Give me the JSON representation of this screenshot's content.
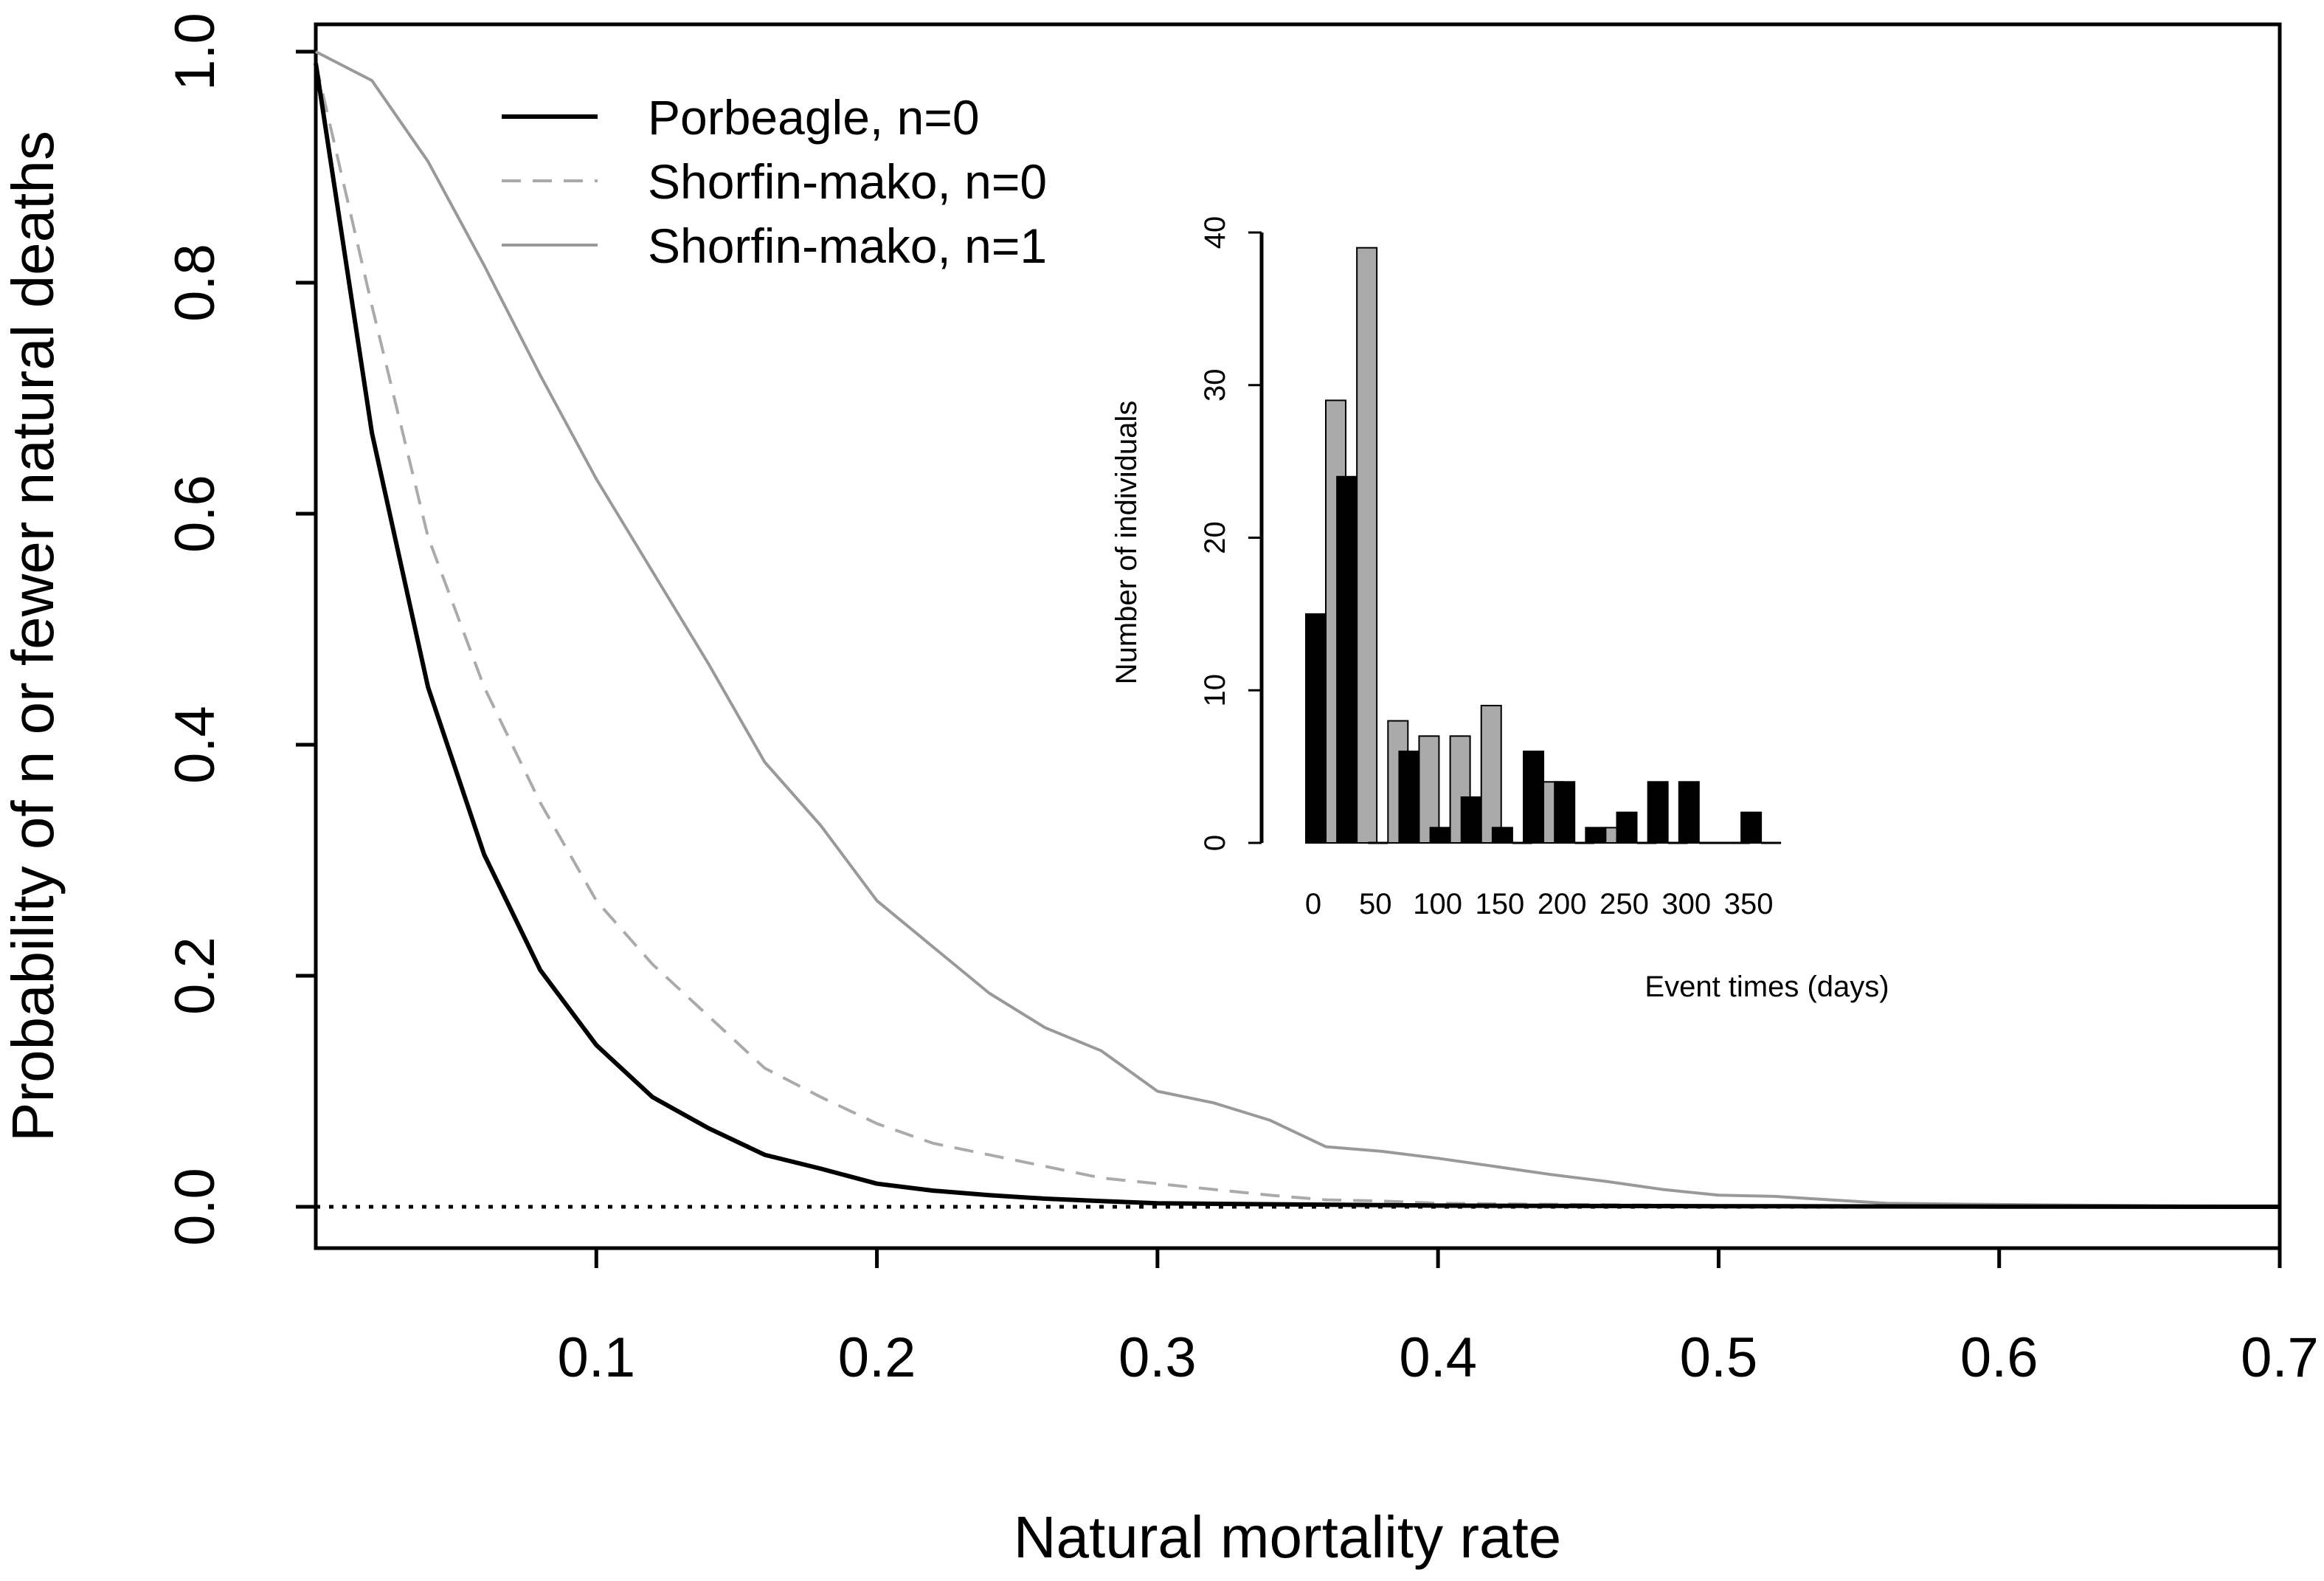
{
  "chart_data": [
    {
      "type": "line",
      "xlabel": "Natural mortality rate",
      "ylabel": "Probability of n or fewer natural deaths",
      "xlim": [
        0,
        0.7
      ],
      "ylim": [
        0,
        1.0
      ],
      "x_ticks": [
        0.1,
        0.2,
        0.3,
        0.4,
        0.5,
        0.6,
        0.7
      ],
      "x_tick_labels": [
        "0.1",
        "0.2",
        "0.3",
        "0.4",
        "0.5",
        "0.6",
        "0.7"
      ],
      "y_ticks": [
        0.0,
        0.2,
        0.4,
        0.6,
        0.8,
        1.0
      ],
      "y_tick_labels": [
        "0.0",
        "0.2",
        "0.4",
        "0.6",
        "0.8",
        "1.0"
      ],
      "reference_line": {
        "y": 0.0,
        "style": "dotted"
      },
      "legend_position": "top-left",
      "series": [
        {
          "name": "Porbeagle, n=0",
          "color": "#000000",
          "style": "solid",
          "x": [
            0,
            0.02,
            0.04,
            0.06,
            0.08,
            0.1,
            0.12,
            0.14,
            0.16,
            0.18,
            0.2,
            0.22,
            0.24,
            0.26,
            0.28,
            0.3,
            0.35,
            0.4,
            0.5,
            0.6,
            0.7
          ],
          "y": [
            0.99,
            0.67,
            0.45,
            0.305,
            0.205,
            0.14,
            0.095,
            0.068,
            0.045,
            0.033,
            0.02,
            0.014,
            0.01,
            0.007,
            0.005,
            0.003,
            0.002,
            0.001,
            0.0005,
            0.0002,
            0.0
          ]
        },
        {
          "name": "Shorfin-mako, n=0",
          "color": "#aaaaaa",
          "style": "dashed",
          "x": [
            0,
            0.02,
            0.04,
            0.06,
            0.08,
            0.1,
            0.12,
            0.14,
            0.16,
            0.18,
            0.2,
            0.22,
            0.24,
            0.26,
            0.28,
            0.3,
            0.32,
            0.34,
            0.36,
            0.38,
            0.4,
            0.45,
            0.5,
            0.6,
            0.7
          ],
          "y": [
            0.99,
            0.78,
            0.58,
            0.45,
            0.35,
            0.265,
            0.21,
            0.165,
            0.12,
            0.095,
            0.072,
            0.055,
            0.045,
            0.035,
            0.025,
            0.02,
            0.015,
            0.01,
            0.006,
            0.005,
            0.003,
            0.002,
            0.001,
            0.0005,
            0.0
          ]
        },
        {
          "name": "Shorfin-mako, n=1",
          "color": "#999999",
          "style": "solid",
          "x": [
            0,
            0.02,
            0.04,
            0.06,
            0.08,
            0.1,
            0.12,
            0.14,
            0.16,
            0.18,
            0.2,
            0.22,
            0.24,
            0.26,
            0.28,
            0.3,
            0.32,
            0.34,
            0.36,
            0.38,
            0.4,
            0.42,
            0.44,
            0.46,
            0.48,
            0.5,
            0.52,
            0.54,
            0.56,
            0.6,
            0.65,
            0.7
          ],
          "y": [
            1.0,
            0.975,
            0.905,
            0.815,
            0.72,
            0.63,
            0.55,
            0.47,
            0.385,
            0.33,
            0.265,
            0.225,
            0.185,
            0.155,
            0.135,
            0.1,
            0.09,
            0.075,
            0.052,
            0.048,
            0.042,
            0.035,
            0.028,
            0.022,
            0.015,
            0.01,
            0.009,
            0.006,
            0.003,
            0.002,
            0.001,
            0.0
          ]
        }
      ]
    },
    {
      "type": "bar",
      "xlabel": "Event times (days)",
      "ylabel": "Number of individuals",
      "ylim": [
        0,
        40
      ],
      "y_ticks": [
        0,
        10,
        20,
        30,
        40
      ],
      "y_tick_labels": [
        "0",
        "10",
        "20",
        "30",
        "40"
      ],
      "x_ticks": [
        0,
        50,
        100,
        150,
        200,
        250,
        300,
        350
      ],
      "x_tick_labels": [
        "0",
        "50",
        "100",
        "150",
        "200",
        "250",
        "300",
        "350"
      ],
      "bin_starts": [
        0,
        25,
        50,
        75,
        100,
        125,
        150,
        175,
        200,
        225,
        250,
        275,
        300,
        325,
        350
      ],
      "series": [
        {
          "name": "Porbeagle",
          "color": "#000000",
          "values": [
            15,
            24,
            0,
            6,
            1,
            3,
            1,
            6,
            4,
            1,
            2,
            4,
            4,
            0,
            2
          ]
        },
        {
          "name": "Shorfin-mako",
          "color": "#aaaaaa",
          "values": [
            29,
            39,
            8,
            7,
            7,
            9,
            0,
            4,
            0,
            1,
            0,
            0,
            0,
            0,
            0
          ]
        }
      ]
    }
  ]
}
